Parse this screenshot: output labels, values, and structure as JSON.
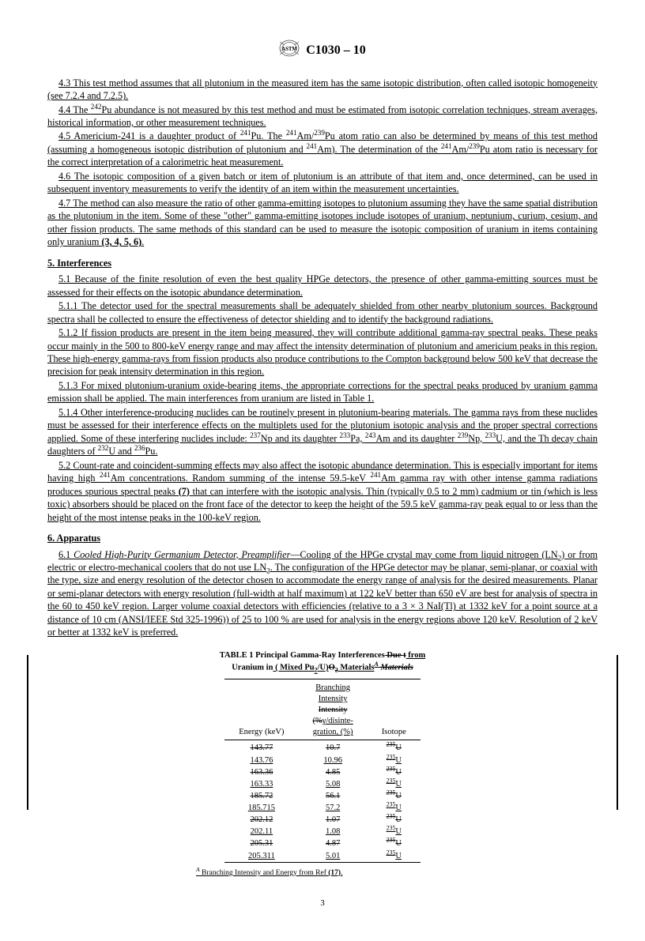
{
  "header": {
    "standard": "C1030 – 10"
  },
  "paras": {
    "p43": "4.3 This test method assumes that all plutonium in the measured item has the same isotopic distribution, often called isotopic homogeneity (see 7.2.4 and 7.2.5).",
    "p44a": "4.4 The ",
    "p44b": "Pu abundance is not measured by this test method and must be estimated from isotopic correlation techniques, stream averages, historical information, or other measurement techniques.",
    "p45a": "4.5 Americium-241 is a daughter product of ",
    "p45b": "Pu. The ",
    "p45c": "Am/",
    "p45d": "Pu atom ratio can also be determined by means of this test method (assuming a homogeneous isotopic distribution of plutonium and ",
    "p45e": "Am). The determination of the ",
    "p45f": "Am/",
    "p45g": "Pu atom ratio is necessary for the correct interpretation of a calorimetric heat measurement.",
    "p46": "4.6 The isotopic composition of a given batch or item of plutonium is an attribute of that item and, once determined, can be used in subsequent inventory measurements to verify the identity of an item within the measurement uncertainties.",
    "p47a": "4.7 The method can also measure the ratio of other gamma-emitting isotopes to plutonium assuming they have the same spatial distribution as the plutonium in the item. Some of these \"other\" gamma-emitting isotopes include isotopes of uranium, neptunium, curium, cesium, and other fission products. The same methods of this standard can be used to measure the isotopic composition of uranium in items containing only uranium ",
    "p47refs": "(3, 4, 5, 6)",
    "p47end": ".",
    "s5": "5. Interferences",
    "p51": "5.1 Because of the finite resolution of even the best quality HPGe detectors, the presence of other gamma-emitting sources must be assessed for their effects on the isotopic abundance determination.",
    "p511": "5.1.1 The detector used for the spectral measurements shall be adequately shielded from other nearby plutonium sources. Background spectra shall be collected to ensure the effectiveness of detector shielding and to identify the background radiations.",
    "p512": "5.1.2 If fission products are present in the item being measured, they will contribute additional gamma-ray spectral peaks. These peaks occur mainly in the 500 to 800-keV energy range and may affect the intensity determination of plutonium and americium peaks in this region. These high-energy gamma-rays from fission products also produce contributions to the Compton background below 500 keV that decrease the precision for peak intensity determination in this region.",
    "p513": "5.1.3 For mixed plutonium-uranium oxide-bearing items, the appropriate corrections for the spectral peaks produced by uranium gamma emission shall be applied. The main interferences from uranium are listed in Table 1.",
    "p514a": "5.1.4 Other interference-producing nuclides can be routinely present in plutonium-bearing materials. The gamma rays from these nuclides must be assessed for their interference effects on the multiplets used for the plutonium isotopic analysis and the proper spectral corrections applied. Some of these interfering nuclides include: ",
    "p514b": "Np and its daughter ",
    "p514c": "Pa, ",
    "p514d": "Am and its daughter ",
    "p514e": "Np, ",
    "p514f": "U, and the Th decay chain daughters of ",
    "p514g": "U and ",
    "p514h": "Pu.",
    "p52a": "5.2 Count-rate and coincident-summing effects may also affect the isotopic abundance determination. This is especially important for items having high ",
    "p52b": "Am concentrations. Random summing of the intense 59.5-keV ",
    "p52c": "Am gamma ray with other intense gamma radiations produces spurious spectral peaks ",
    "p52ref": "(7)",
    "p52d": " that can interfere with the isotopic analysis. Thin (typically 0.5 to 2 mm) cadmium or tin (which is less toxic) absorbers should be placed on the front face of the detector to keep the height of the 59.5 keV gamma-ray peak equal to or less than the height of the most intense peaks in the 100-keV region.",
    "s6": "6. Apparatus",
    "p61lead": "6.1 ",
    "p61ital": "Cooled High-Purity Germanium Detector, Preamplifier",
    "p61a": "—Cooling of the HPGe crystal may come from liquid nitrogen (LN",
    "p61b": ") or from electric or electro-mechanical coolers that do not use LN",
    "p61c": ". The configuration of the HPGe detector may be planar, semi-planar, or coaxial with the type, size and energy resolution of the detector chosen to accommodate the energy range of analysis for the desired measurements. Planar or semi-planar detectors with energy resolution (full-width at half maximum) at 122 keV better than 650 eV are best for analysis of spectra in the 60 to 450 keV region. Larger volume coaxial detectors with efficiencies (relative to a 3 × 3 NaI(Tl) at 1332 keV for a point source at a distance of 10 cm (ANSI/IEEE Std 325-1996)) of 25 to 100 % are used for analysis in the energy regions above 120 keV. Resolution of 2 keV or better at 1332 keV is preferred."
  },
  "table": {
    "title_l1": "TABLE 1  Principal Gamma-Ray Interferences",
    "title_due_strike": " Due ",
    "title_t_strike": "t",
    "title_from": " from",
    "title_l2a": "Uranium in",
    "title_l2_mixed_ul": " ( Mixed Pu",
    "title_l2_sub": "2",
    "title_l2_uo": "/U)",
    "title_l2_o_strike": "O",
    "title_l2_2sub": "2",
    "title_l2_materials_ul": " Materials",
    "title_l2_supA": "A",
    "title_l2_materials_strike": " Materials",
    "col1": "Energy (keV)",
    "col2_l1": "Branching",
    "col2_l2": "Intensity",
    "col2_l3_strike": "Intensity",
    "col2_l4_strike": "(%",
    "col2_l4b": "γ/disinte-",
    "col2_l5": "gration",
    "col2_l5b": ", (%)",
    "col3": "Isotope",
    "rows": [
      {
        "e_strike": "143.77",
        "b_strike": "10.7",
        "iso_strike": "235",
        "el": "U"
      },
      {
        "e": "143.76",
        "b": "10.96",
        "iso": "235",
        "el": "U"
      },
      {
        "e_strike": "163.36",
        "b_strike": "4.85",
        "iso_strike": "235",
        "el": "U"
      },
      {
        "e": "163.33",
        "b": "5.08",
        "iso": "235",
        "el": "U"
      },
      {
        "e_strike": "185.72",
        "b_strike": "56.1",
        "iso_strike": "235",
        "el": "U"
      },
      {
        "e": "185.715",
        "b": "57.2",
        "iso": "235",
        "el": "U"
      },
      {
        "e_strike": "202.12",
        "b_strike": "1.07",
        "iso_strike": "235",
        "el": "U"
      },
      {
        "e": "202.11",
        "b": "1.08",
        "iso": "235",
        "el": "U"
      },
      {
        "e_strike": "205.31",
        "b_strike": "4.87",
        "iso_strike": "235",
        "el": "U"
      },
      {
        "e": "205.311",
        "b": "5.01",
        "iso": "235",
        "el": "U"
      }
    ],
    "footnote_supA": "A",
    "footnote": " Branching Intensity and Energy from Ref ",
    "footnote_ref": "(17)",
    "footnote_end": "."
  },
  "page": "3"
}
